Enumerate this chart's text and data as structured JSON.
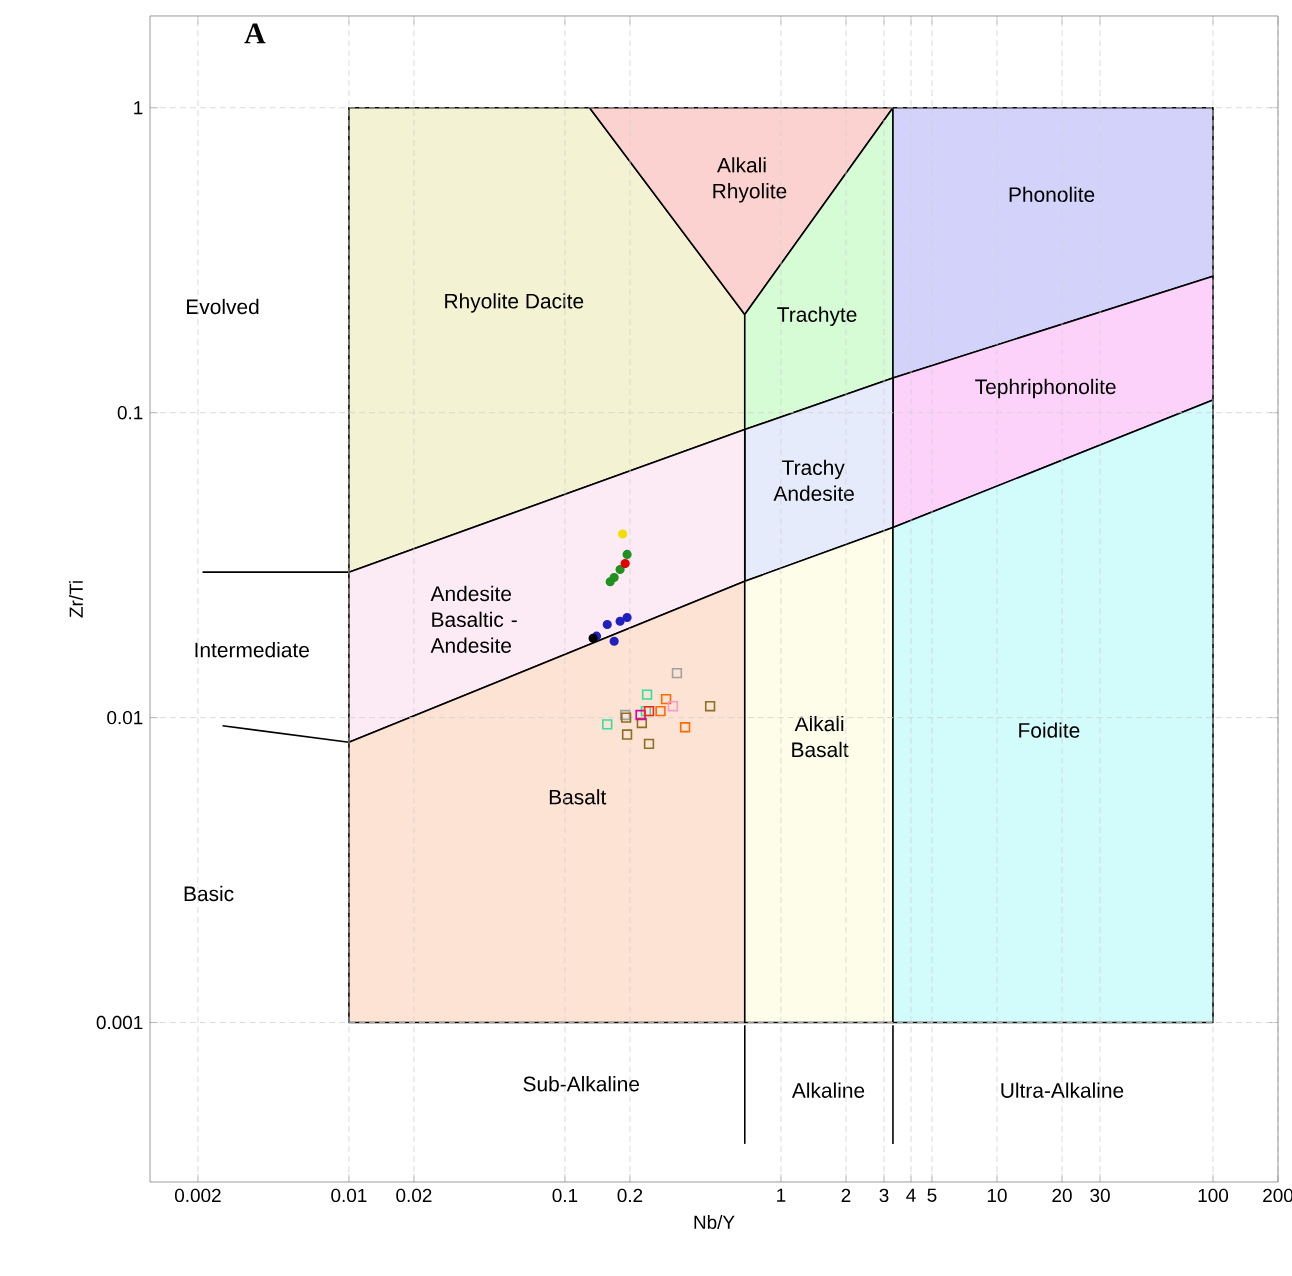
{
  "chart_data": {
    "type": "scatter",
    "title": "A",
    "xlabel": "Nb/Y",
    "ylabel": "Zr/Ti",
    "log": "xy",
    "xlim": [
      0.0012,
      200
    ],
    "ylim": [
      0.0003,
      2
    ],
    "xticks": [
      0.002,
      0.01,
      0.02,
      0.1,
      0.2,
      1,
      2,
      3,
      4,
      5,
      10,
      20,
      30,
      100,
      200
    ],
    "yticks": [
      0.001,
      0.01,
      0.1,
      1
    ],
    "grid": true,
    "series": [
      {
        "type": "area",
        "color": "#f3f2d2",
        "x": [
          0.01,
          0.01,
          0.13,
          0.68,
          0.68
        ],
        "values": [
          0.03,
          1,
          1,
          0.21,
          0.088
        ]
      },
      {
        "type": "area",
        "color": "#fbd2d0",
        "x": [
          0.13,
          3.3,
          0.68
        ],
        "values": [
          1,
          1,
          0.21
        ]
      },
      {
        "type": "area",
        "color": "#d5fcd5",
        "x": [
          0.68,
          3.3,
          3.3,
          0.68
        ],
        "values": [
          0.21,
          1,
          0.13,
          0.088
        ]
      },
      {
        "type": "area",
        "color": "#d2d2fb",
        "x": [
          3.3,
          100,
          100,
          3.3
        ],
        "values": [
          1,
          1,
          0.28,
          0.13
        ]
      },
      {
        "type": "area",
        "color": "#fcd2fb",
        "x": [
          3.3,
          100,
          100,
          3.3
        ],
        "values": [
          0.13,
          0.28,
          0.11,
          0.042
        ]
      },
      {
        "type": "area",
        "color": "#e6ebfb",
        "x": [
          0.68,
          3.3,
          3.3,
          0.68
        ],
        "values": [
          0.088,
          0.13,
          0.042,
          0.028
        ]
      },
      {
        "type": "area",
        "color": "#fcebf5",
        "x": [
          0.01,
          0.68,
          0.68,
          0.01
        ],
        "values": [
          0.03,
          0.088,
          0.028,
          0.0083
        ]
      },
      {
        "type": "area",
        "color": "#fde3d3",
        "x": [
          0.01,
          0.68,
          0.68,
          0.01
        ],
        "values": [
          0.0083,
          0.028,
          0.001,
          0.001
        ]
      },
      {
        "type": "area",
        "color": "#fdfde9",
        "x": [
          0.68,
          3.3,
          3.3,
          0.68
        ],
        "values": [
          0.028,
          0.042,
          0.001,
          0.001
        ]
      },
      {
        "type": "area",
        "color": "#d2fbfb",
        "x": [
          3.3,
          100,
          100,
          3.3
        ],
        "values": [
          0.042,
          0.11,
          0.001,
          0.001
        ]
      },
      {
        "type": "line",
        "color": "#000000",
        "x": [
          0.0021,
          0.01
        ],
        "values": [
          0.03,
          0.03
        ]
      },
      {
        "type": "line",
        "color": "#000000",
        "x": [
          0.0026,
          0.01
        ],
        "values": [
          0.0094,
          0.0083
        ]
      },
      {
        "type": "line",
        "color": "#000000",
        "x": [
          0.68,
          0.68
        ],
        "values": [
          0.00098,
          0.0004
        ]
      },
      {
        "type": "line",
        "color": "#000000",
        "x": [
          3.3,
          3.3
        ],
        "values": [
          0.00098,
          0.0004
        ]
      },
      {
        "marker": "square",
        "color": "#a0a0a0",
        "x": [
          0.33,
          0.19
        ],
        "values": [
          0.014,
          0.0102
        ]
      },
      {
        "marker": "square",
        "color": "#8a7020",
        "x": [
          0.47,
          0.194,
          0.245,
          0.192,
          0.227
        ],
        "values": [
          0.0109,
          0.0088,
          0.0082,
          0.01,
          0.0096
        ]
      },
      {
        "marker": "square",
        "color": "#ff6a00",
        "x": [
          0.36,
          0.294,
          0.277
        ],
        "values": [
          0.0093,
          0.0115,
          0.0105
        ]
      },
      {
        "marker": "square",
        "color": "#30e0a0",
        "x": [
          0.157,
          0.24,
          0.237
        ],
        "values": [
          0.0095,
          0.0119,
          0.0105
        ]
      },
      {
        "marker": "square",
        "color": "#ff9ad0",
        "x": [
          0.316
        ],
        "values": [
          0.0109
        ]
      },
      {
        "marker": "square",
        "color": "#e000a0",
        "x": [
          0.224
        ],
        "values": [
          0.0102
        ]
      },
      {
        "marker": "square",
        "color": "#ff2020",
        "x": [
          0.245
        ],
        "values": [
          0.0105
        ]
      },
      {
        "marker": "circle",
        "color": "#f0e000",
        "x": [
          0.185
        ],
        "values": [
          0.04
        ]
      },
      {
        "marker": "circle",
        "color": "#209020",
        "x": [
          0.169,
          0.18,
          0.194,
          0.162
        ],
        "values": [
          0.0288,
          0.0306,
          0.0343,
          0.0279
        ]
      },
      {
        "marker": "circle",
        "color": "#e00000",
        "x": [
          0.19
        ],
        "values": [
          0.032
        ]
      },
      {
        "marker": "circle",
        "color": "#2020c0",
        "x": [
          0.157,
          0.18,
          0.169,
          0.194,
          0.14
        ],
        "values": [
          0.0202,
          0.0207,
          0.0178,
          0.0213,
          0.0185
        ]
      },
      {
        "marker": "circle",
        "color": "#000000",
        "x": [
          0.135
        ],
        "values": [
          0.0182
        ]
      }
    ],
    "annotations": [
      "Evolved",
      "Rhyolite Dacite",
      "Alkali Rhyolite",
      "Trachyte",
      "Phonolite",
      "Tephriphonolite",
      "Trachy Andesite",
      "Andesite Basaltic - Andesite",
      "Intermediate",
      "Alkali Basalt",
      "Foidite",
      "Basalt",
      "Basic",
      "Sub-Alkaline",
      "Alkaline",
      "Ultra-Alkaline"
    ]
  }
}
